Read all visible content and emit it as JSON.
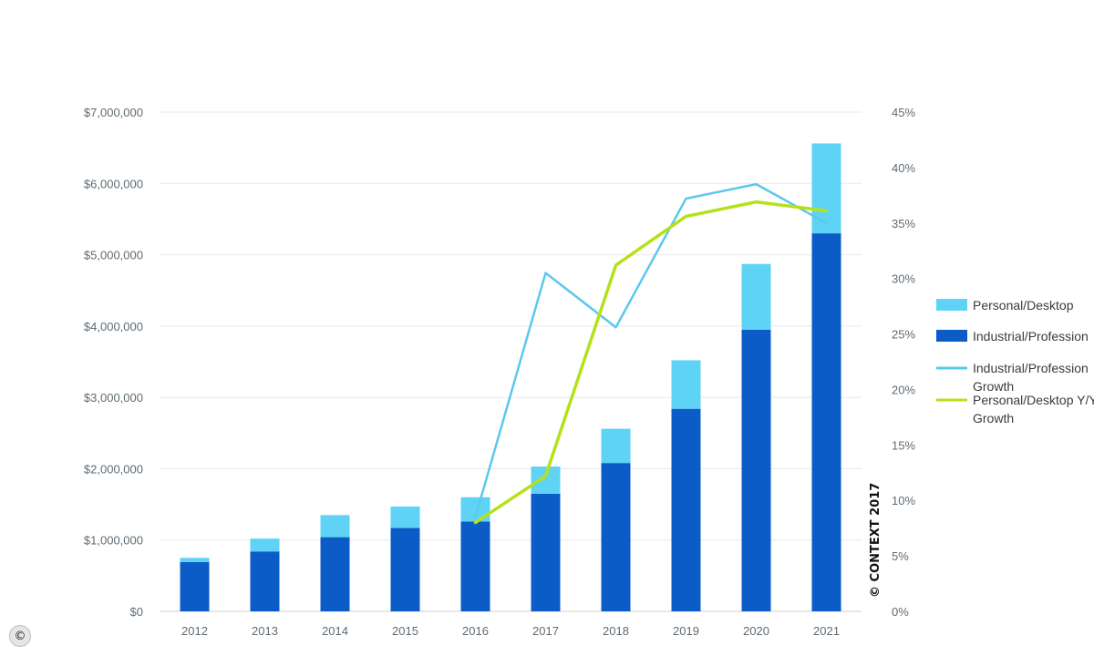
{
  "chart_data": {
    "type": "bar",
    "stacked": true,
    "categories": [
      "2012",
      "2013",
      "2014",
      "2015",
      "2016",
      "2017",
      "2018",
      "2019",
      "2020",
      "2021"
    ],
    "series": [
      {
        "name": "Industrial/Professional",
        "kind": "bar",
        "axis": "left",
        "color": "#0b5cc7",
        "values": [
          690000,
          840000,
          1040000,
          1170000,
          1260000,
          1650000,
          2080000,
          2840000,
          3950000,
          5300000
        ]
      },
      {
        "name": "Personal/Desktop",
        "kind": "bar",
        "axis": "left",
        "color": "#5fd3f5",
        "values": [
          60000,
          180000,
          310000,
          300000,
          340000,
          380000,
          480000,
          680000,
          920000,
          1260000
        ]
      },
      {
        "name": "Industrial/Professional Y/Y Growth",
        "kind": "line",
        "axis": "right",
        "color": "#5bc8ef",
        "x": [
          "2016",
          "2017",
          "2018",
          "2019",
          "2020",
          "2021"
        ],
        "values": [
          8.5,
          30.5,
          25.6,
          37.2,
          38.5,
          35.0
        ]
      },
      {
        "name": "Personal/Desktop Y/Y Growth",
        "kind": "line",
        "axis": "right",
        "color": "#b6e11a",
        "x": [
          "2016",
          "2017",
          "2018",
          "2019",
          "2020",
          "2021"
        ],
        "values": [
          8.0,
          12.2,
          31.2,
          35.6,
          36.9,
          36.1
        ]
      }
    ],
    "left_axis": {
      "ylim": [
        0,
        7000000
      ],
      "ticks": [
        0,
        1000000,
        2000000,
        3000000,
        4000000,
        5000000,
        6000000,
        7000000
      ],
      "tick_labels": [
        "$0",
        "$1,000,000",
        "$2,000,000",
        "$3,000,000",
        "$4,000,000",
        "$5,000,000",
        "$6,000,000",
        "$7,000,000"
      ]
    },
    "right_axis": {
      "ylim": [
        0,
        45
      ],
      "ticks": [
        0,
        5,
        10,
        15,
        20,
        25,
        30,
        35,
        40,
        45
      ],
      "tick_labels": [
        "0%",
        "5%",
        "10%",
        "15%",
        "20%",
        "25%",
        "30%",
        "35%",
        "40%",
        "45%"
      ]
    },
    "legend": {
      "placement": "right",
      "entries": [
        {
          "label": "Personal/Desktop",
          "swatch": "bar",
          "color": "#5fd3f5"
        },
        {
          "label": "Industrial/Profession",
          "swatch": "bar",
          "color": "#0b5cc7"
        },
        {
          "label": "Industrial/Profession",
          "label2": "Growth",
          "swatch": "line",
          "color": "#5bc8ef"
        },
        {
          "label": "Personal/Desktop Y/Y",
          "label2": "Growth",
          "swatch": "line",
          "color": "#b6e11a"
        }
      ]
    },
    "grid": true,
    "copyright": "© CONTEXT 2017",
    "corner_mark": "©"
  }
}
